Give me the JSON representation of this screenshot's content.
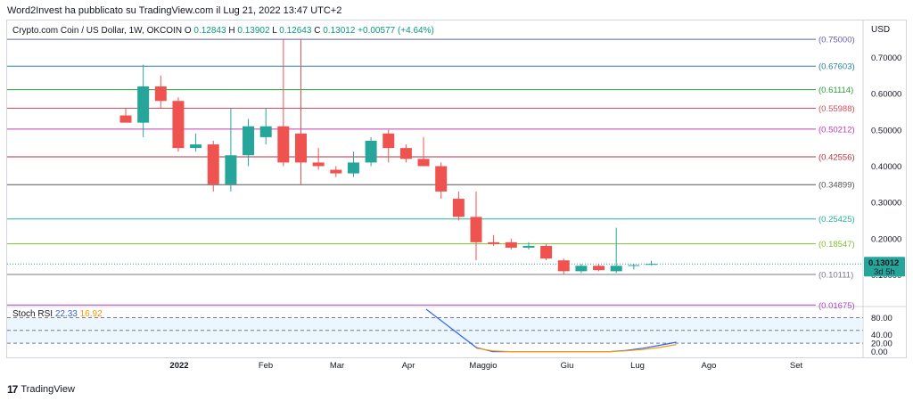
{
  "header": {
    "publisher_text": "Word2Invest ha pubblicato su TradingView.com il Lug 21, 2022 13:47 UTC+2"
  },
  "legend": {
    "symbol": "Crypto.com Coin / US Dollar, 1W, OKCOIN",
    "o_label": "O",
    "open": "0.12843",
    "h_label": "H",
    "high": "0.13902",
    "l_label": "L",
    "low": "0.12643",
    "c_label": "C",
    "close": "0.13012",
    "change": "+0.00577 (+4.64%)",
    "currency": "USD"
  },
  "price_tag": {
    "price": "0.13012",
    "countdown": "3d 5h",
    "color": "#26a69a"
  },
  "stoch": {
    "label": "Stoch RSI",
    "k": "22.33",
    "d": "16.92",
    "k_color": "#2962ff",
    "d_color": "#ff9800"
  },
  "footer": {
    "brand": "TradingView",
    "logo_mark": "17"
  },
  "colors": {
    "up": "#26a69a",
    "down": "#ef5350",
    "band": "#e3f2fd"
  },
  "chart_data": [
    {
      "type": "candlestick",
      "title": "Crypto.com Coin / US Dollar, 1W, OKCOIN",
      "y_axis": {
        "ticks": [
          "0.70000",
          "0.60000",
          "0.50000",
          "0.40000",
          "0.30000",
          "0.20000",
          "0.10000"
        ],
        "tick_values": [
          0.7,
          0.6,
          0.5,
          0.4,
          0.3,
          0.2,
          0.1
        ],
        "range": [
          0.015,
          0.77
        ]
      },
      "x_axis": {
        "ticks": [
          "2022",
          "Feb",
          "Mar",
          "Apr",
          "Maggio",
          "Giu",
          "Lug",
          "Ago",
          "Set"
        ]
      },
      "fib_levels": [
        {
          "label": "(0.75000)",
          "value": 0.75,
          "color": "#5e63b6"
        },
        {
          "label": "(0.67603)",
          "value": 0.67603,
          "color": "#2a7fa0"
        },
        {
          "label": "(0.61114)",
          "value": 0.61114,
          "color": "#2e9c3e"
        },
        {
          "label": "(0.55988)",
          "value": 0.55988,
          "color": "#d84c5b"
        },
        {
          "label": "(0.50212)",
          "value": 0.50212,
          "color": "#c23bb0"
        },
        {
          "label": "(0.42556)",
          "value": 0.42556,
          "color": "#b8323e"
        },
        {
          "label": "(0.34899)",
          "value": 0.34899,
          "color": "#555555"
        },
        {
          "label": "(0.25425)",
          "value": 0.25425,
          "color": "#22b2a0"
        },
        {
          "label": "(0.18547)",
          "value": 0.18547,
          "color": "#7fbf30"
        },
        {
          "label": "(0.10111)",
          "value": 0.10111,
          "color": "#787b86"
        },
        {
          "label": "(0.01675)",
          "value": 0.01675,
          "color": "#ab47bc"
        }
      ],
      "candles": [
        {
          "o": 0.54,
          "h": 0.56,
          "l": 0.52,
          "c": 0.52
        },
        {
          "o": 0.52,
          "h": 0.68,
          "l": 0.48,
          "c": 0.62
        },
        {
          "o": 0.62,
          "h": 0.65,
          "l": 0.56,
          "c": 0.58
        },
        {
          "o": 0.58,
          "h": 0.59,
          "l": 0.44,
          "c": 0.45
        },
        {
          "o": 0.45,
          "h": 0.49,
          "l": 0.44,
          "c": 0.46
        },
        {
          "o": 0.46,
          "h": 0.47,
          "l": 0.33,
          "c": 0.35
        },
        {
          "o": 0.35,
          "h": 0.56,
          "l": 0.33,
          "c": 0.43
        },
        {
          "o": 0.43,
          "h": 0.53,
          "l": 0.4,
          "c": 0.51
        },
        {
          "o": 0.48,
          "h": 0.56,
          "l": 0.46,
          "c": 0.51
        },
        {
          "o": 0.51,
          "h": 0.75,
          "l": 0.4,
          "c": 0.41
        },
        {
          "o": 0.49,
          "h": 0.75,
          "l": 0.35,
          "c": 0.41
        },
        {
          "o": 0.41,
          "h": 0.45,
          "l": 0.39,
          "c": 0.4
        },
        {
          "o": 0.39,
          "h": 0.4,
          "l": 0.37,
          "c": 0.38
        },
        {
          "o": 0.38,
          "h": 0.44,
          "l": 0.37,
          "c": 0.41
        },
        {
          "o": 0.41,
          "h": 0.48,
          "l": 0.4,
          "c": 0.47
        },
        {
          "o": 0.49,
          "h": 0.5,
          "l": 0.41,
          "c": 0.45
        },
        {
          "o": 0.45,
          "h": 0.46,
          "l": 0.41,
          "c": 0.42
        },
        {
          "o": 0.42,
          "h": 0.48,
          "l": 0.4,
          "c": 0.4
        },
        {
          "o": 0.4,
          "h": 0.41,
          "l": 0.31,
          "c": 0.33
        },
        {
          "o": 0.31,
          "h": 0.33,
          "l": 0.25,
          "c": 0.26
        },
        {
          "o": 0.26,
          "h": 0.33,
          "l": 0.14,
          "c": 0.19
        },
        {
          "o": 0.19,
          "h": 0.21,
          "l": 0.18,
          "c": 0.185
        },
        {
          "o": 0.19,
          "h": 0.2,
          "l": 0.17,
          "c": 0.175
        },
        {
          "o": 0.175,
          "h": 0.19,
          "l": 0.17,
          "c": 0.18
        },
        {
          "o": 0.18,
          "h": 0.185,
          "l": 0.14,
          "c": 0.145
        },
        {
          "o": 0.14,
          "h": 0.145,
          "l": 0.1,
          "c": 0.11
        },
        {
          "o": 0.11,
          "h": 0.13,
          "l": 0.105,
          "c": 0.125
        },
        {
          "o": 0.125,
          "h": 0.13,
          "l": 0.11,
          "c": 0.113
        },
        {
          "o": 0.11,
          "h": 0.23,
          "l": 0.105,
          "c": 0.125
        },
        {
          "o": 0.125,
          "h": 0.13,
          "l": 0.115,
          "c": 0.127
        },
        {
          "o": 0.1284,
          "h": 0.139,
          "l": 0.1264,
          "c": 0.1301
        }
      ]
    },
    {
      "type": "line",
      "title": "Stoch RSI",
      "y_axis": {
        "ticks": [
          "80.00",
          "40.00",
          "20.00",
          "0.00"
        ],
        "tick_values": [
          80,
          40,
          20,
          0
        ],
        "range": [
          -5,
          100
        ]
      },
      "bands": [
        20,
        50,
        80
      ],
      "series": [
        {
          "name": "22.33",
          "color": "#2962ff",
          "values": [
            100,
            70,
            40,
            10,
            0,
            0,
            0,
            0,
            0,
            0,
            0,
            0,
            3,
            8,
            15,
            22.33
          ]
        },
        {
          "name": "16.92",
          "color": "#ff9800",
          "values": [
            null,
            null,
            null,
            8,
            2,
            0,
            0,
            0,
            0,
            0,
            0,
            0,
            2,
            5,
            10,
            16.92
          ]
        }
      ]
    }
  ]
}
